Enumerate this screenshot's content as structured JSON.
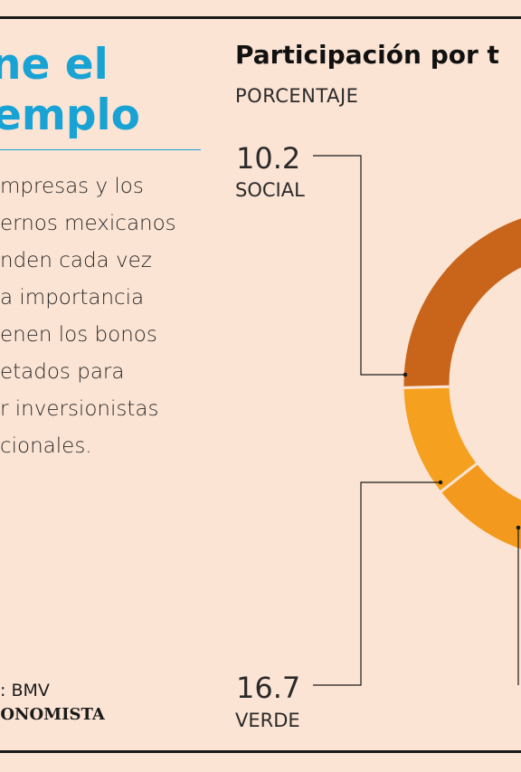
{
  "headline": {
    "line1": "ne el",
    "line2": "emplo"
  },
  "body": {
    "lines": [
      "mpresas y los",
      "ernos mexicanos",
      "nden cada vez",
      "a importancia",
      "enen los bonos",
      "etados para",
      "r inversionistas",
      "cionales."
    ]
  },
  "source": {
    "text": "E: BMV",
    "brand": "CONOMISTA"
  },
  "colors": {
    "accent": "#19a3d4",
    "background": "#fce4d4",
    "social": "#f6a020",
    "verde": "#f39a1e",
    "dark": "#c8651b"
  },
  "chart_data": {
    "type": "pie",
    "title": "Participación por t",
    "subtitle": "PORCENTAJE",
    "slices": [
      {
        "label": "SOCIAL",
        "value": 10.2,
        "display": "10.2"
      },
      {
        "label": "VERDE",
        "value": 16.7,
        "display": "16.7"
      }
    ]
  }
}
